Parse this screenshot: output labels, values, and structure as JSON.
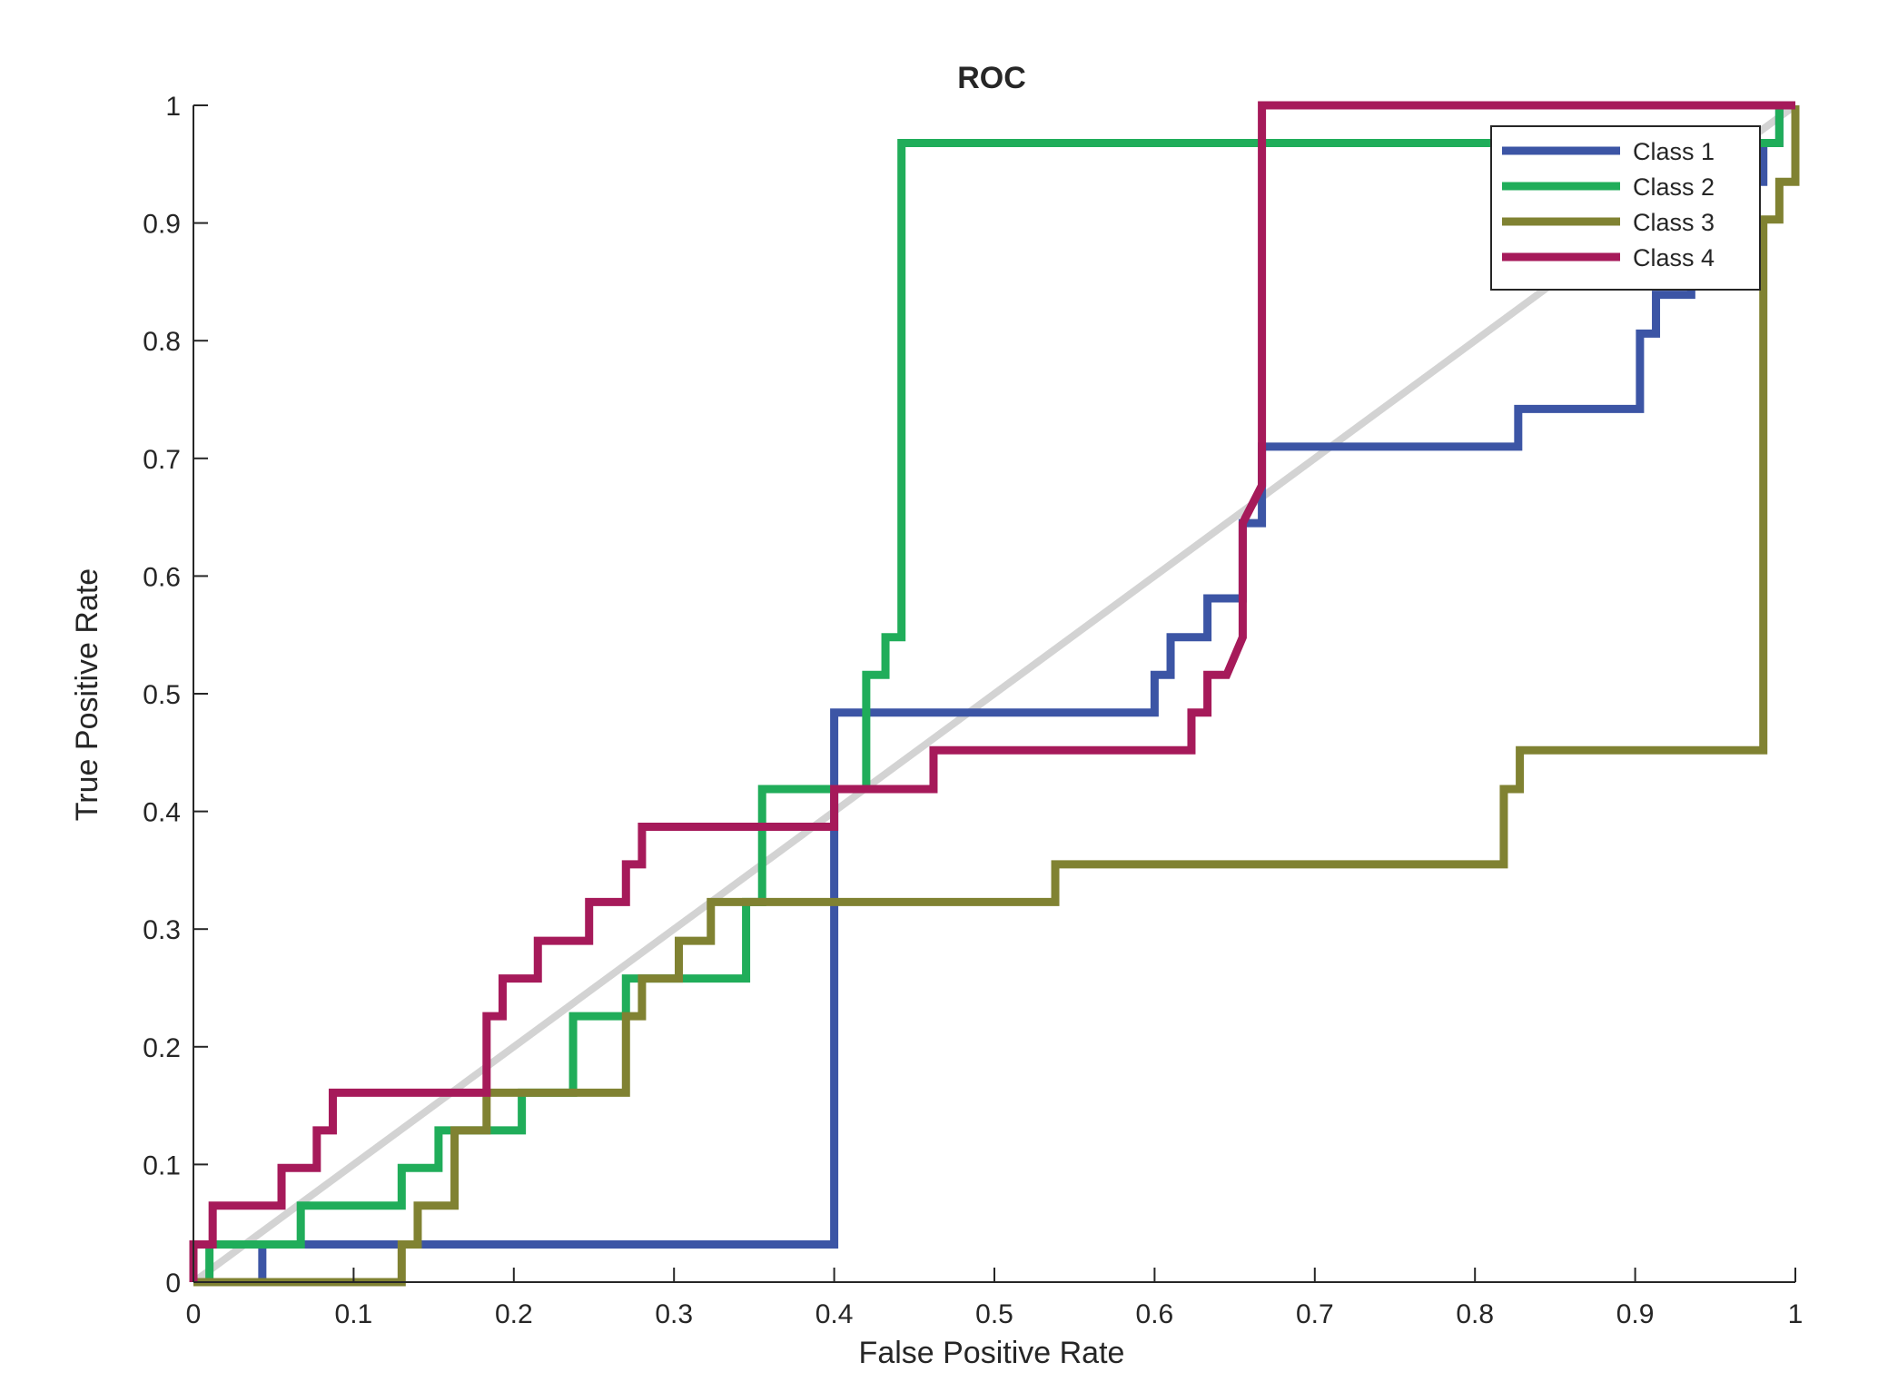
{
  "chart_data": {
    "type": "line",
    "title": "ROC",
    "xlabel": "False Positive Rate",
    "ylabel": "True Positive Rate",
    "xlim": [
      0,
      1
    ],
    "ylim": [
      0,
      1
    ],
    "grid": false,
    "legend_position": "top-right",
    "xticks": [
      0,
      0.1,
      0.2,
      0.3,
      0.4,
      0.5,
      0.6,
      0.7,
      0.8,
      0.9,
      1
    ],
    "yticks": [
      0,
      0.1,
      0.2,
      0.3,
      0.4,
      0.5,
      0.6,
      0.7,
      0.8,
      0.9,
      1
    ],
    "xtick_labels": [
      "0",
      "0.1",
      "0.2",
      "0.3",
      "0.4",
      "0.5",
      "0.6",
      "0.7",
      "0.8",
      "0.9",
      "1"
    ],
    "ytick_labels": [
      "0",
      "0.1",
      "0.2",
      "0.3",
      "0.4",
      "0.5",
      "0.6",
      "0.7",
      "0.8",
      "0.9",
      "1"
    ],
    "reference_line": {
      "name": "chance",
      "color": "#d3d3d3",
      "points": [
        [
          0,
          0
        ],
        [
          1,
          1
        ]
      ]
    },
    "series": [
      {
        "name": "Class 1",
        "color": "#3c55a5",
        "points": [
          [
            0,
            0
          ],
          [
            0,
            0.032
          ],
          [
            0.043,
            0.032
          ],
          [
            0.043,
            0
          ],
          [
            0.043,
            0.032
          ],
          [
            0.4,
            0.032
          ],
          [
            0.4,
            0.484
          ],
          [
            0.6,
            0.484
          ],
          [
            0.6,
            0.516
          ],
          [
            0.61,
            0.516
          ],
          [
            0.61,
            0.548
          ],
          [
            0.633,
            0.548
          ],
          [
            0.633,
            0.581
          ],
          [
            0.655,
            0.581
          ],
          [
            0.655,
            0.645
          ],
          [
            0.667,
            0.645
          ],
          [
            0.667,
            0.71
          ],
          [
            0.827,
            0.71
          ],
          [
            0.827,
            0.742
          ],
          [
            0.903,
            0.742
          ],
          [
            0.903,
            0.806
          ],
          [
            0.913,
            0.806
          ],
          [
            0.913,
            0.839
          ],
          [
            0.935,
            0.839
          ],
          [
            0.935,
            0.871
          ],
          [
            0.94,
            0.871
          ],
          [
            0.94,
            0.903
          ],
          [
            0.96,
            0.903
          ],
          [
            0.96,
            0.935
          ],
          [
            0.98,
            0.935
          ],
          [
            0.98,
            0.968
          ],
          [
            0.99,
            0.968
          ],
          [
            0.99,
            1
          ],
          [
            1,
            1
          ]
        ]
      },
      {
        "name": "Class 2",
        "color": "#20ad5a",
        "points": [
          [
            0,
            0
          ],
          [
            0.01,
            0
          ],
          [
            0.01,
            0.032
          ],
          [
            0.067,
            0.032
          ],
          [
            0.067,
            0.065
          ],
          [
            0.13,
            0.065
          ],
          [
            0.13,
            0.097
          ],
          [
            0.153,
            0.097
          ],
          [
            0.153,
            0.129
          ],
          [
            0.205,
            0.129
          ],
          [
            0.205,
            0.161
          ],
          [
            0.237,
            0.161
          ],
          [
            0.237,
            0.226
          ],
          [
            0.27,
            0.226
          ],
          [
            0.27,
            0.258
          ],
          [
            0.345,
            0.258
          ],
          [
            0.345,
            0.323
          ],
          [
            0.355,
            0.323
          ],
          [
            0.355,
            0.419
          ],
          [
            0.42,
            0.419
          ],
          [
            0.42,
            0.516
          ],
          [
            0.432,
            0.516
          ],
          [
            0.432,
            0.548
          ],
          [
            0.442,
            0.548
          ],
          [
            0.442,
            0.968
          ],
          [
            0.99,
            0.968
          ],
          [
            0.99,
            1
          ],
          [
            1,
            1
          ]
        ]
      },
      {
        "name": "Class 3",
        "color": "#808232",
        "points": [
          [
            0,
            0
          ],
          [
            0.13,
            0
          ],
          [
            0.13,
            0.032
          ],
          [
            0.14,
            0.032
          ],
          [
            0.14,
            0.065
          ],
          [
            0.163,
            0.065
          ],
          [
            0.163,
            0.129
          ],
          [
            0.183,
            0.129
          ],
          [
            0.183,
            0.161
          ],
          [
            0.27,
            0.161
          ],
          [
            0.27,
            0.226
          ],
          [
            0.28,
            0.226
          ],
          [
            0.28,
            0.258
          ],
          [
            0.303,
            0.258
          ],
          [
            0.303,
            0.29
          ],
          [
            0.323,
            0.29
          ],
          [
            0.323,
            0.323
          ],
          [
            0.538,
            0.323
          ],
          [
            0.538,
            0.355
          ],
          [
            0.818,
            0.355
          ],
          [
            0.818,
            0.419
          ],
          [
            0.828,
            0.419
          ],
          [
            0.828,
            0.452
          ],
          [
            0.98,
            0.452
          ],
          [
            0.98,
            0.903
          ],
          [
            0.99,
            0.903
          ],
          [
            0.99,
            0.935
          ],
          [
            1,
            0.935
          ],
          [
            1,
            1
          ]
        ]
      },
      {
        "name": "Class 4",
        "color": "#a61a5a",
        "points": [
          [
            0,
            0
          ],
          [
            0,
            0.032
          ],
          [
            0.012,
            0.032
          ],
          [
            0.012,
            0.065
          ],
          [
            0.055,
            0.065
          ],
          [
            0.055,
            0.097
          ],
          [
            0.077,
            0.097
          ],
          [
            0.077,
            0.129
          ],
          [
            0.087,
            0.129
          ],
          [
            0.087,
            0.161
          ],
          [
            0.183,
            0.161
          ],
          [
            0.183,
            0.226
          ],
          [
            0.193,
            0.226
          ],
          [
            0.193,
            0.258
          ],
          [
            0.215,
            0.258
          ],
          [
            0.215,
            0.29
          ],
          [
            0.247,
            0.29
          ],
          [
            0.247,
            0.323
          ],
          [
            0.27,
            0.323
          ],
          [
            0.27,
            0.355
          ],
          [
            0.28,
            0.355
          ],
          [
            0.28,
            0.387
          ],
          [
            0.4,
            0.387
          ],
          [
            0.4,
            0.419
          ],
          [
            0.462,
            0.419
          ],
          [
            0.462,
            0.452
          ],
          [
            0.623,
            0.452
          ],
          [
            0.623,
            0.484
          ],
          [
            0.633,
            0.484
          ],
          [
            0.633,
            0.516
          ],
          [
            0.645,
            0.516
          ],
          [
            0.655,
            0.548
          ],
          [
            0.655,
            0.645
          ],
          [
            0.667,
            0.677
          ],
          [
            0.667,
            1
          ],
          [
            1,
            1
          ]
        ]
      }
    ]
  }
}
